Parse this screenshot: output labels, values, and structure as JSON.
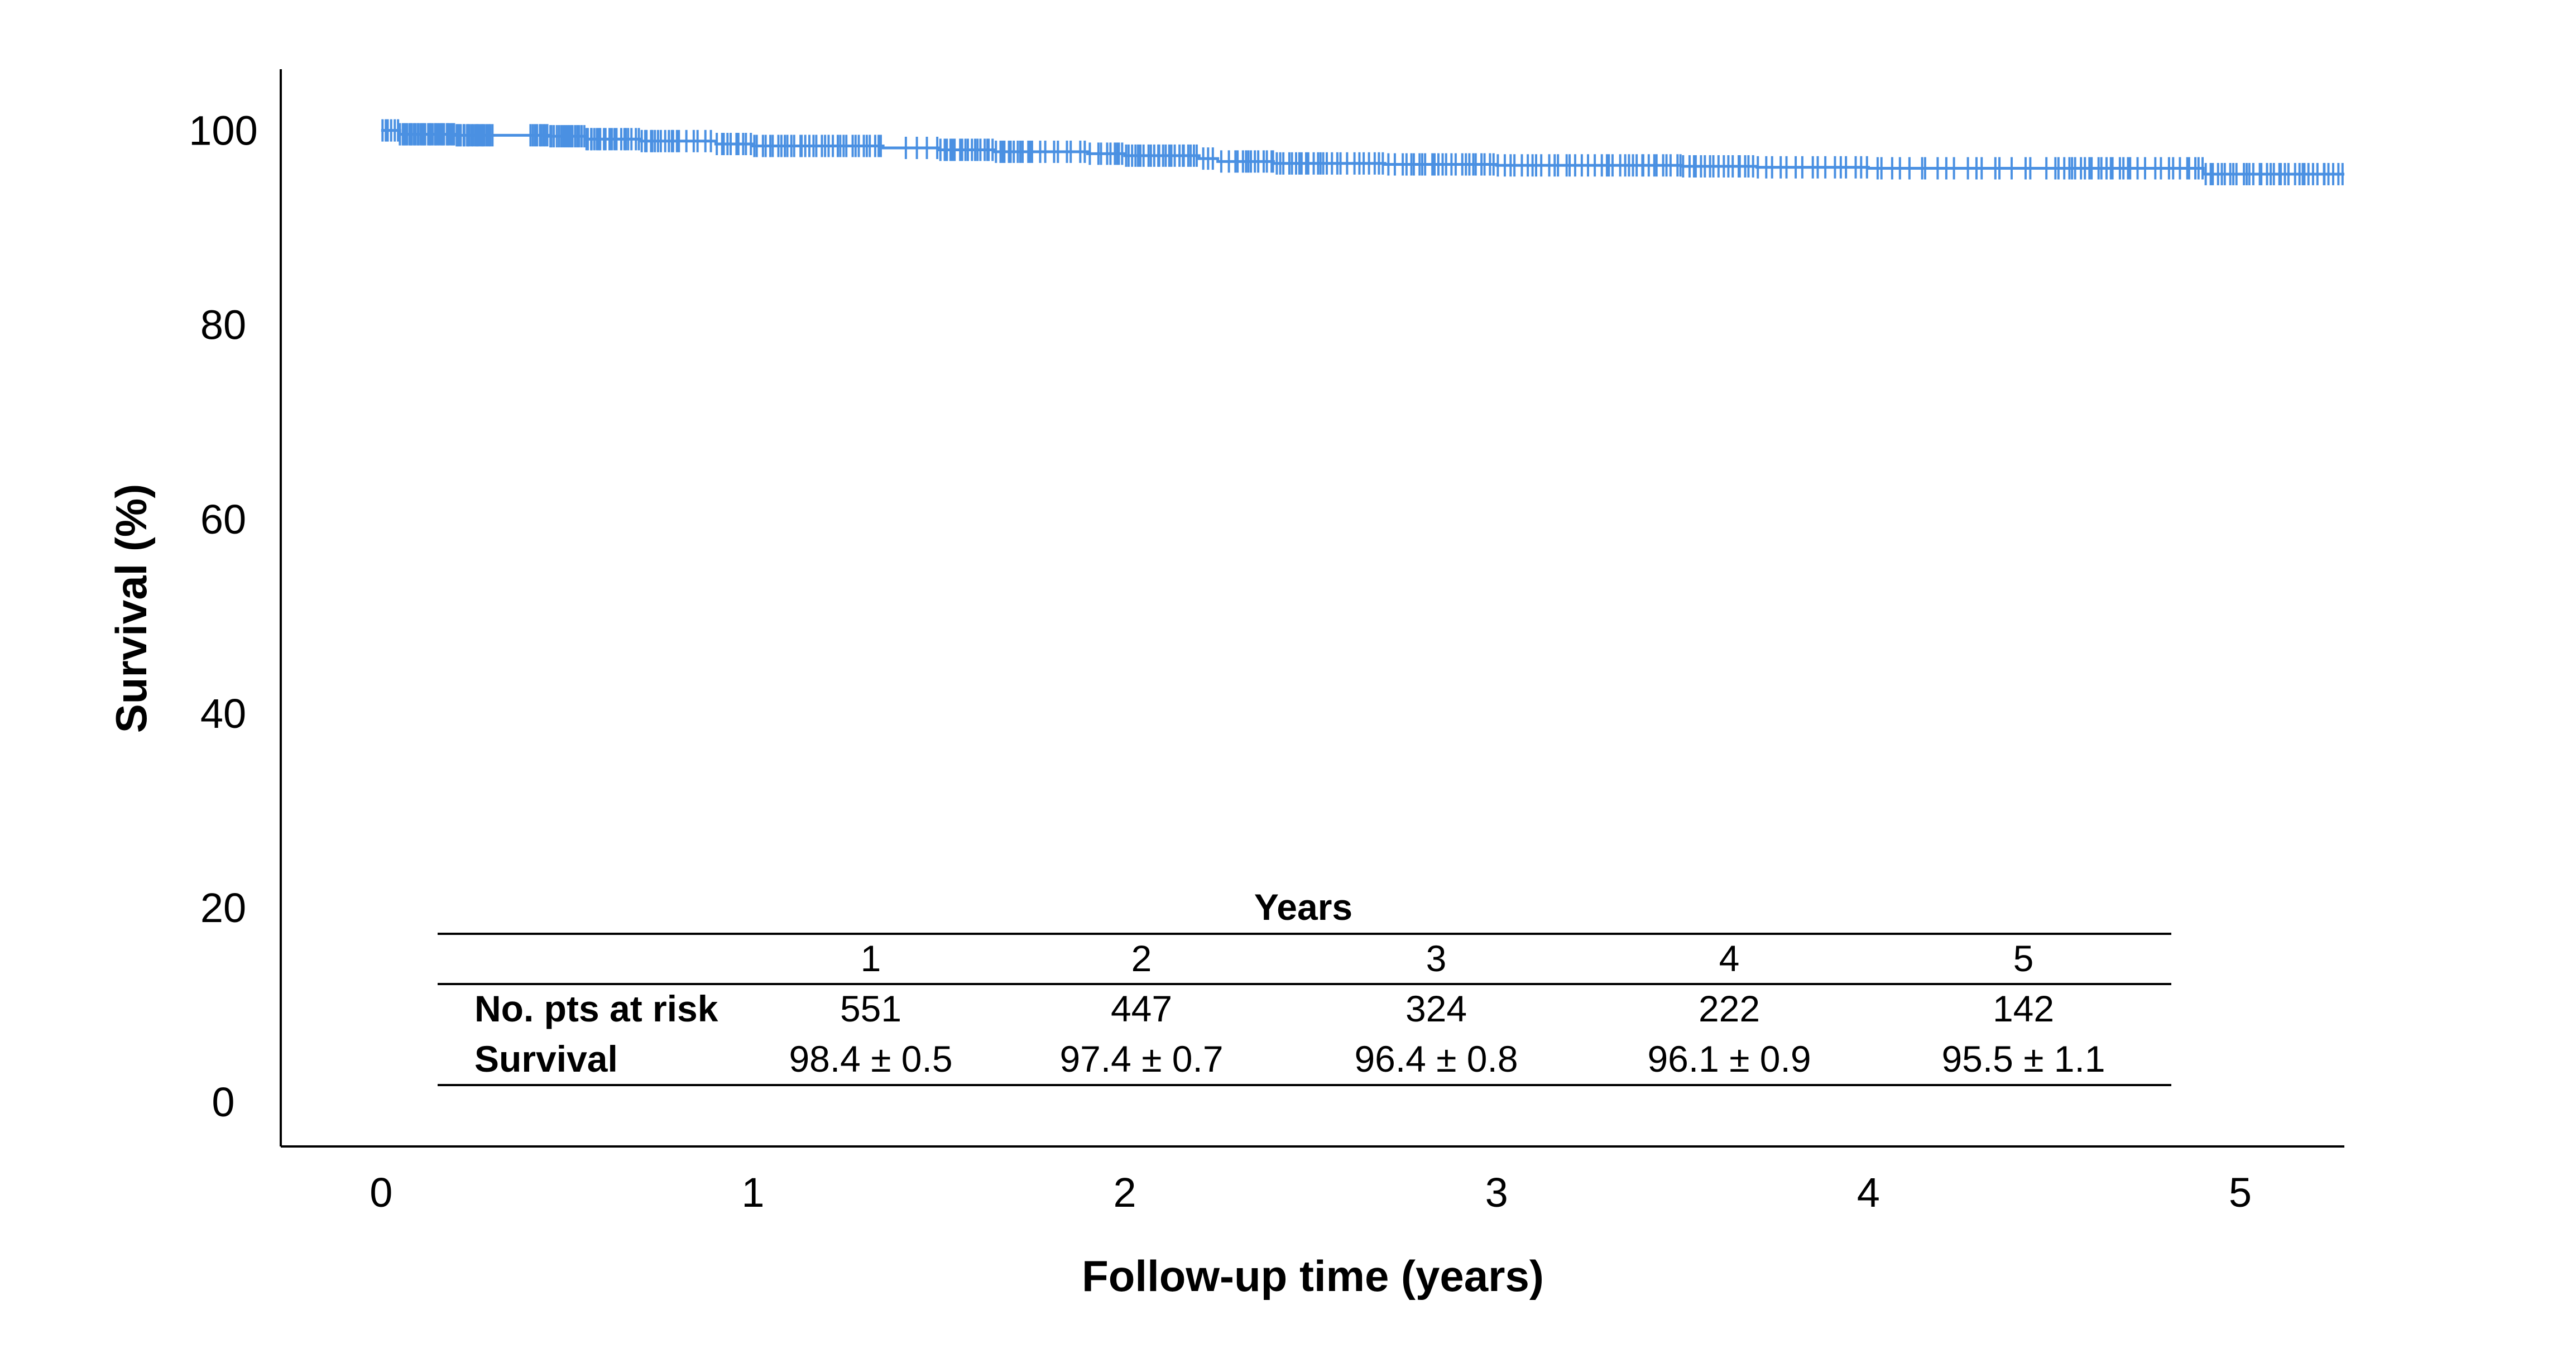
{
  "chart_data": {
    "type": "line",
    "title": "",
    "xlabel": "Follow-up time (years)",
    "ylabel": "Survival (%)",
    "xlim": [
      -0.27,
      5.28
    ],
    "ylim": [
      -4.6,
      106.3
    ],
    "xticks": [
      "0",
      "1",
      "2",
      "3",
      "4",
      "5"
    ],
    "yticks": [
      "0",
      "20",
      "40",
      "60",
      "80",
      "100"
    ],
    "grid": false,
    "legend": "none",
    "line_color": "#4a90e2",
    "series": [
      {
        "steps": [
          [
            0,
            100
          ],
          [
            0.05,
            99.6
          ],
          [
            0.2,
            99.5
          ],
          [
            0.45,
            99.4
          ],
          [
            0.55,
            99.1
          ],
          [
            0.7,
            98.9
          ],
          [
            0.9,
            98.6
          ],
          [
            1.0,
            98.4
          ],
          [
            1.35,
            98.2
          ],
          [
            1.5,
            98.0
          ],
          [
            1.65,
            97.8
          ],
          [
            1.9,
            97.6
          ],
          [
            2.0,
            97.4
          ],
          [
            2.2,
            97.1
          ],
          [
            2.25,
            96.8
          ],
          [
            2.4,
            96.6
          ],
          [
            2.7,
            96.5
          ],
          [
            3.0,
            96.4
          ],
          [
            3.5,
            96.3
          ],
          [
            3.7,
            96.2
          ],
          [
            4.0,
            96.1
          ],
          [
            4.9,
            95.5
          ],
          [
            5.28,
            95.5
          ]
        ],
        "censor_density": [
          [
            0,
            0.05,
            6
          ],
          [
            0.05,
            0.3,
            55
          ],
          [
            0.4,
            0.6,
            35
          ],
          [
            0.6,
            0.8,
            25
          ],
          [
            0.8,
            0.9,
            6
          ],
          [
            0.9,
            1.35,
            45
          ],
          [
            1.4,
            1.5,
            4
          ],
          [
            1.5,
            1.75,
            30
          ],
          [
            1.75,
            1.95,
            12
          ],
          [
            1.95,
            2.2,
            30
          ],
          [
            2.2,
            2.3,
            6
          ],
          [
            2.3,
            2.55,
            26
          ],
          [
            2.55,
            2.75,
            14
          ],
          [
            2.75,
            3.0,
            22
          ],
          [
            3.0,
            3.3,
            20
          ],
          [
            3.3,
            3.7,
            34
          ],
          [
            3.7,
            4.05,
            18
          ],
          [
            4.05,
            4.4,
            14
          ],
          [
            4.4,
            4.5,
            3
          ],
          [
            4.5,
            4.7,
            18
          ],
          [
            4.7,
            4.85,
            8
          ],
          [
            4.85,
            5.28,
            40
          ]
        ]
      }
    ],
    "table": {
      "header": "Years",
      "columns": [
        "1",
        "2",
        "3",
        "4",
        "5"
      ],
      "rows": [
        {
          "label": "No. pts at risk",
          "values": [
            "551",
            "447",
            "324",
            "222",
            "142"
          ]
        },
        {
          "label": "Survival",
          "values": [
            "98.4 ± 0.5",
            "97.4 ± 0.7",
            "96.4 ± 0.8",
            "96.1 ± 0.9",
            "95.5 ± 1.1"
          ]
        }
      ]
    }
  }
}
